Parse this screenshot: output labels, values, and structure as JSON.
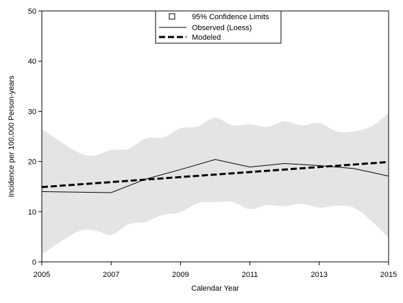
{
  "chart_data": {
    "type": "line",
    "xlabel": "Calendar Year",
    "ylabel": "Incidence per 100,000 Person-years",
    "xlim": [
      2005,
      2015
    ],
    "ylim": [
      0,
      50
    ],
    "x_ticks": [
      2005,
      2007,
      2009,
      2011,
      2013,
      2015
    ],
    "y_ticks": [
      0,
      10,
      20,
      30,
      40,
      50
    ],
    "grid": false,
    "legend_position": "top-center",
    "legend": [
      {
        "label": "95% Confidence Limits",
        "symbol": "square"
      },
      {
        "label": "Observed (Loess)",
        "symbol": "thin-solid"
      },
      {
        "label": "Modeled",
        "symbol": "thick-dashed"
      }
    ],
    "series": [
      {
        "name": "Observed (Loess)",
        "x": [
          2005,
          2007,
          2008,
          2009,
          2010,
          2011,
          2012,
          2013,
          2014,
          2015
        ],
        "y": [
          14.0,
          13.8,
          16.5,
          18.4,
          20.4,
          18.9,
          19.6,
          19.2,
          18.6,
          17.1
        ]
      },
      {
        "name": "Modeled",
        "x": [
          2005,
          2015
        ],
        "y": [
          14.9,
          19.9
        ]
      }
    ],
    "confidence_band": {
      "name": "95% Confidence Limits",
      "x": [
        2005,
        2006,
        2006.5,
        2007,
        2007.5,
        2008,
        2008.5,
        2009,
        2009.5,
        2010,
        2010.5,
        2011,
        2011.5,
        2012,
        2012.5,
        2013,
        2013.5,
        2014,
        2014.5,
        2015
      ],
      "upper": [
        26.5,
        22.0,
        21.2,
        22.3,
        22.5,
        24.6,
        24.8,
        26.6,
        27.0,
        28.7,
        27.2,
        27.4,
        26.9,
        28.0,
        27.2,
        27.7,
        26.0,
        26.0,
        27.0,
        29.6
      ],
      "lower": [
        1.5,
        5.9,
        6.3,
        5.4,
        7.5,
        8.0,
        9.4,
        9.9,
        11.7,
        11.9,
        11.9,
        10.5,
        11.3,
        11.1,
        11.6,
        10.8,
        11.2,
        10.8,
        8.2,
        4.8
      ]
    },
    "colors": {
      "band": "#e4e4e4",
      "observed": "#000000",
      "modeled": "#000000",
      "axis": "#000000"
    }
  }
}
